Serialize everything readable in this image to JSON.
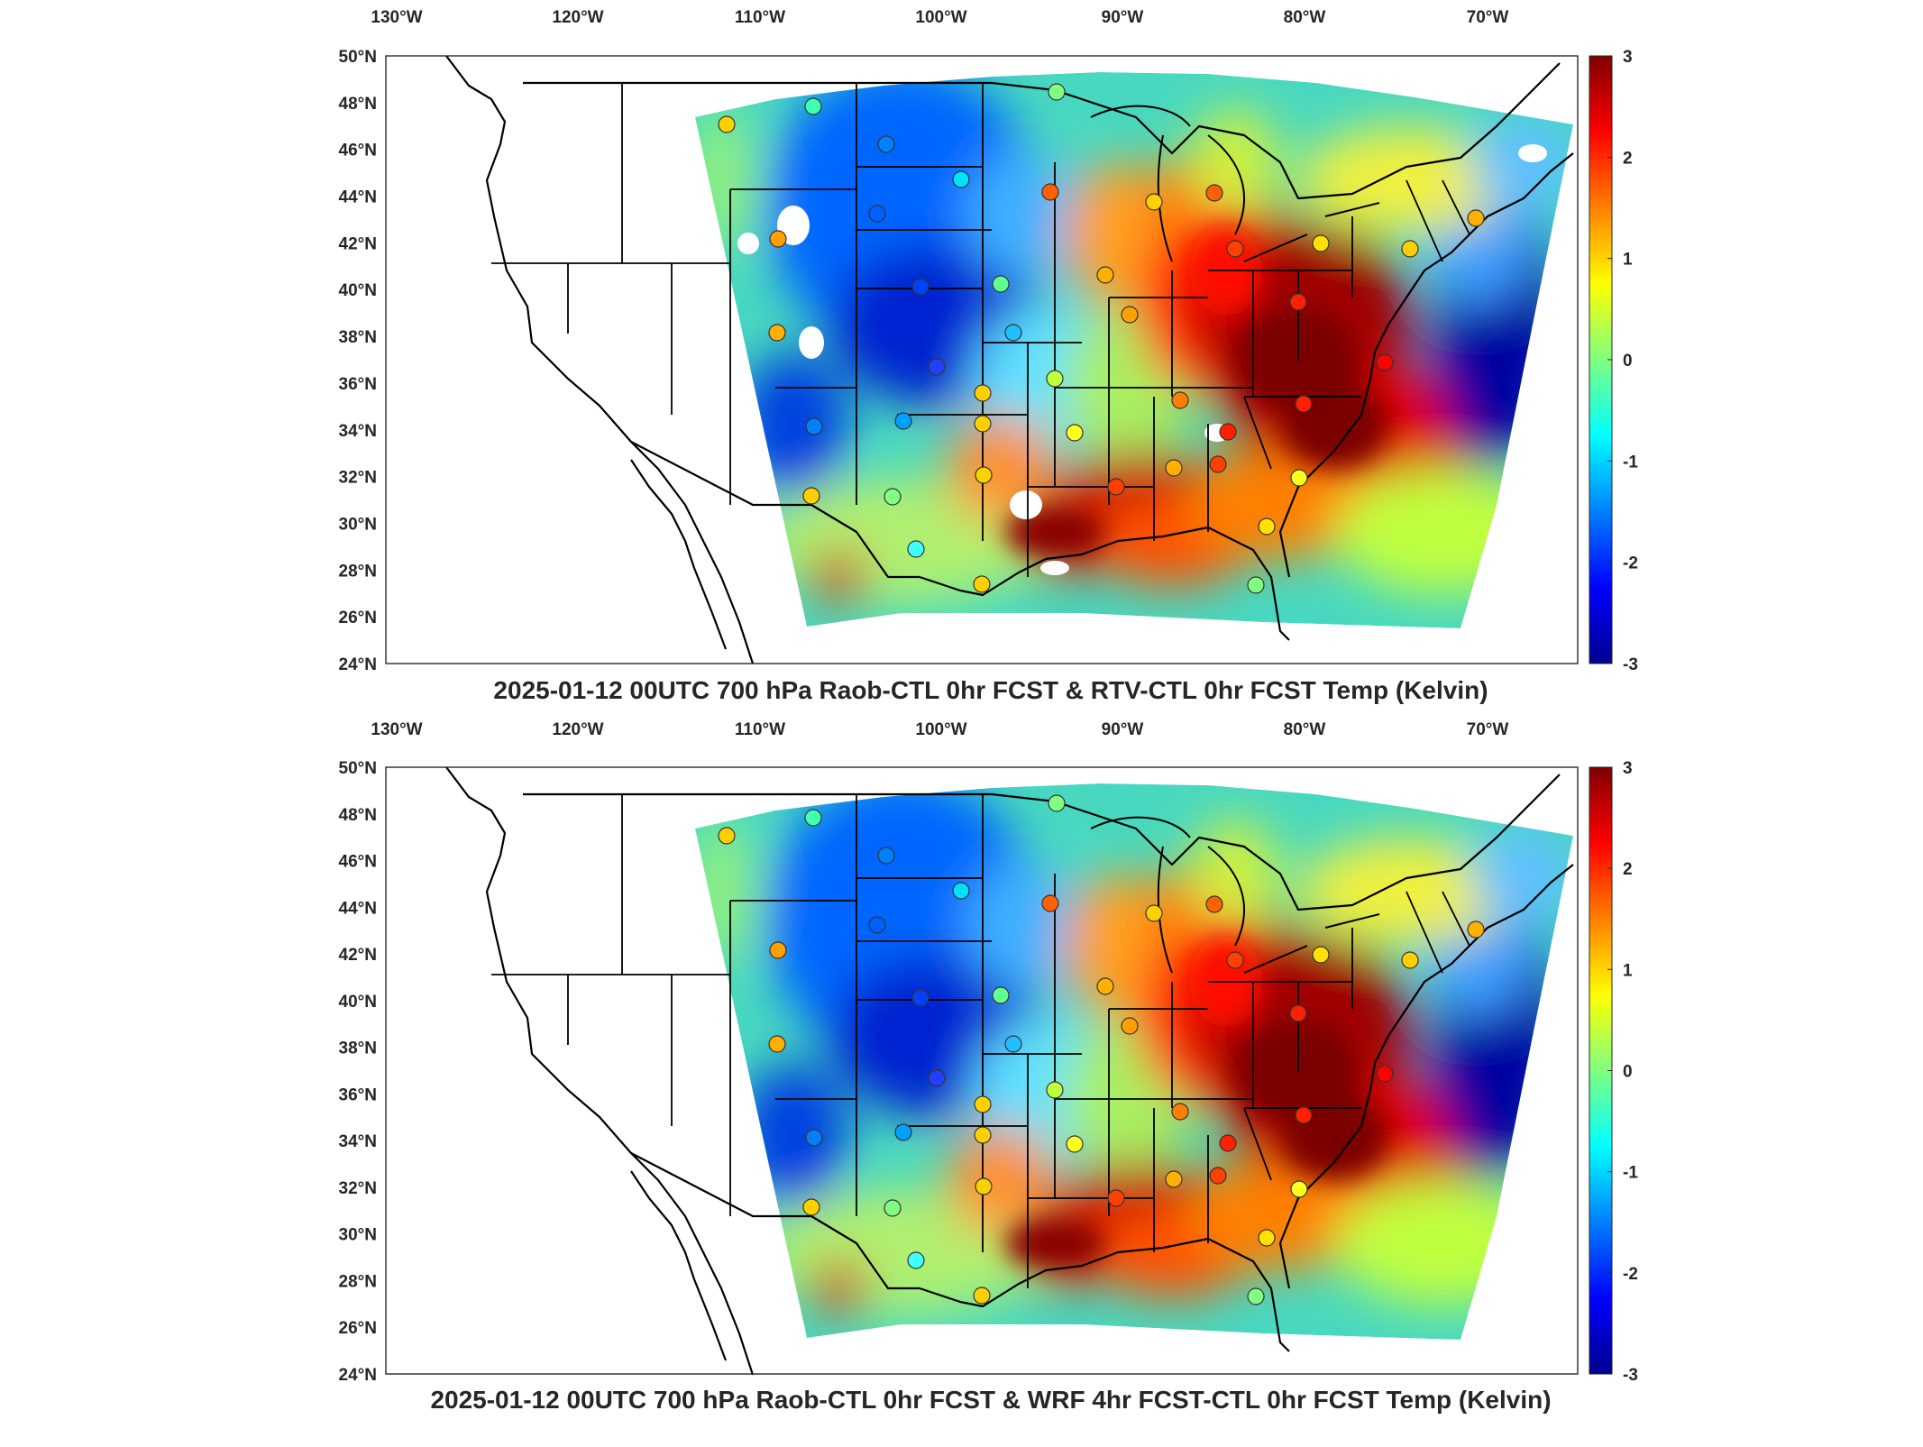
{
  "panels": [
    {
      "id": "top",
      "title": "2025-01-12 00UTC 700 hPa Raob-CTL 0hr FCST & RTV-CTL 0hr FCST Temp (Kelvin)"
    },
    {
      "id": "bottom",
      "title": "2025-01-12 00UTC 700 hPa Raob-CTL 0hr FCST & WRF 4hr FCST-CTL 0hr FCST Temp (Kelvin)"
    }
  ],
  "lon_ticks": [
    "130°W",
    "120°W",
    "110°W",
    "100°W",
    "90°W",
    "80°W",
    "70°W"
  ],
  "lat_ticks": [
    "50°N",
    "48°N",
    "46°N",
    "44°N",
    "42°N",
    "40°N",
    "38°N",
    "36°N",
    "34°N",
    "32°N",
    "30°N",
    "28°N",
    "26°N",
    "24°N"
  ],
  "colorbar": {
    "ticks": [
      "3",
      "2",
      "1",
      "0",
      "-1",
      "-2",
      "-3"
    ],
    "min": -3,
    "max": 3,
    "colormap": "jet",
    "colors": [
      "#00008f",
      "#0000ff",
      "#0080ff",
      "#00ffff",
      "#80ff80",
      "#ffff00",
      "#ff8000",
      "#ff0000",
      "#800000"
    ]
  },
  "map": {
    "projection_extent": "Continental US, 24°N–50°N, 130°W–65°W",
    "overlay": "state boundaries and coastlines",
    "markers": "raob station differences shown as colored circles"
  }
}
